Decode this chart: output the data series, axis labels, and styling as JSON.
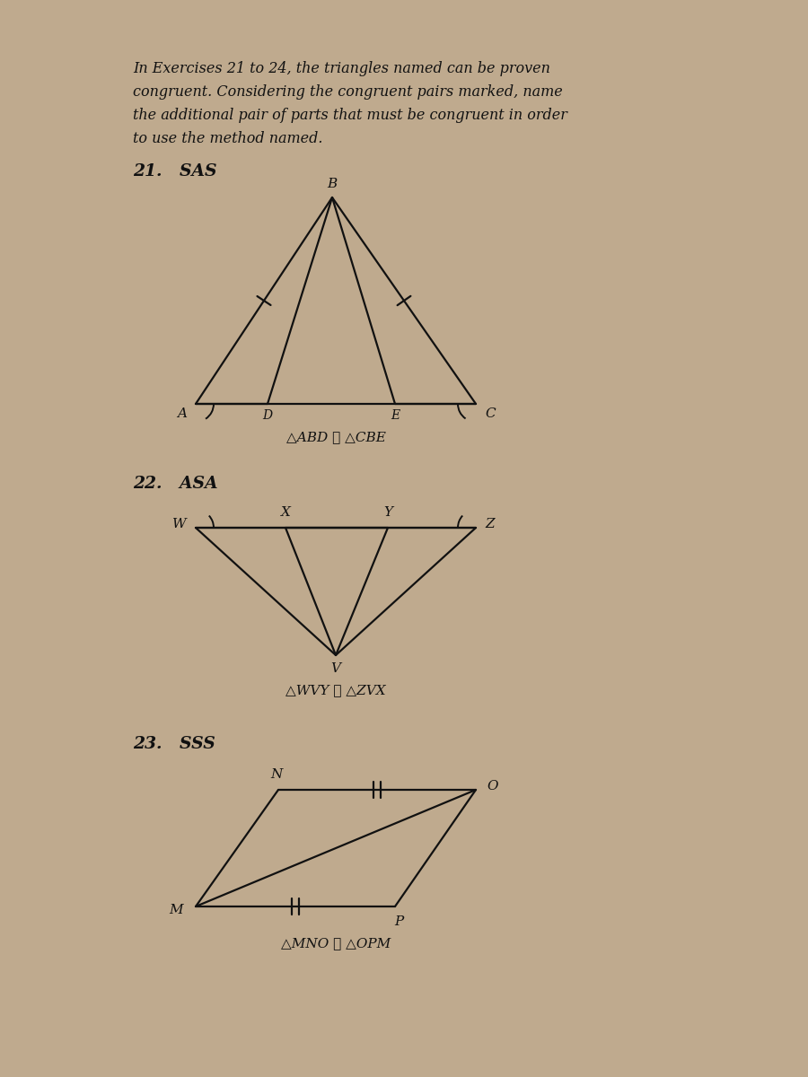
{
  "bg_color": "#bfaa8e",
  "text_color": "#111111",
  "line_color": "#111111",
  "fig_width": 9.0,
  "fig_height": 12.0,
  "intro_text_lines": [
    "In Exercises 21 to 24, the triangles named can be proven",
    "congruent. Considering the congruent pairs marked, name",
    "the additional pair of parts that must be congruent in order",
    "to use the method named."
  ],
  "ex21_label": "21.   SAS",
  "ex22_label": "22.   ASA",
  "ex23_label": "23.   SSS",
  "eq21": "△ABD ≅ △CBE",
  "eq22": "△WVY ≅ △ZVX",
  "eq23": "△MNO ≅ △OPM"
}
